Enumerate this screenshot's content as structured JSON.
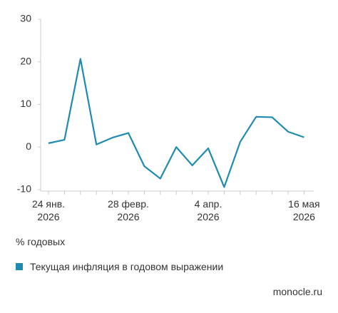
{
  "chart_data": {
    "type": "line",
    "categories": [
      "24 янв. 2026",
      null,
      null,
      null,
      null,
      "28 февр. 2026",
      null,
      null,
      null,
      null,
      "4 апр. 2026",
      null,
      null,
      null,
      null,
      null,
      "16 мая 2026"
    ],
    "series": [
      {
        "name": "Текущая инфляция в годовом выражении",
        "color": "#1f8bb0",
        "values": [
          0.9,
          1.7,
          20.7,
          0.6,
          2.2,
          3.3,
          -4.5,
          -7.4,
          0.0,
          -4.3,
          -0.3,
          -9.4,
          1.2,
          7.1,
          7.0,
          3.6,
          2.3
        ]
      }
    ],
    "ylim": [
      -10,
      30
    ],
    "yticks": [
      -10,
      0,
      10,
      20,
      30
    ],
    "y_unit": "% годовых",
    "source": "monocle.ru"
  }
}
